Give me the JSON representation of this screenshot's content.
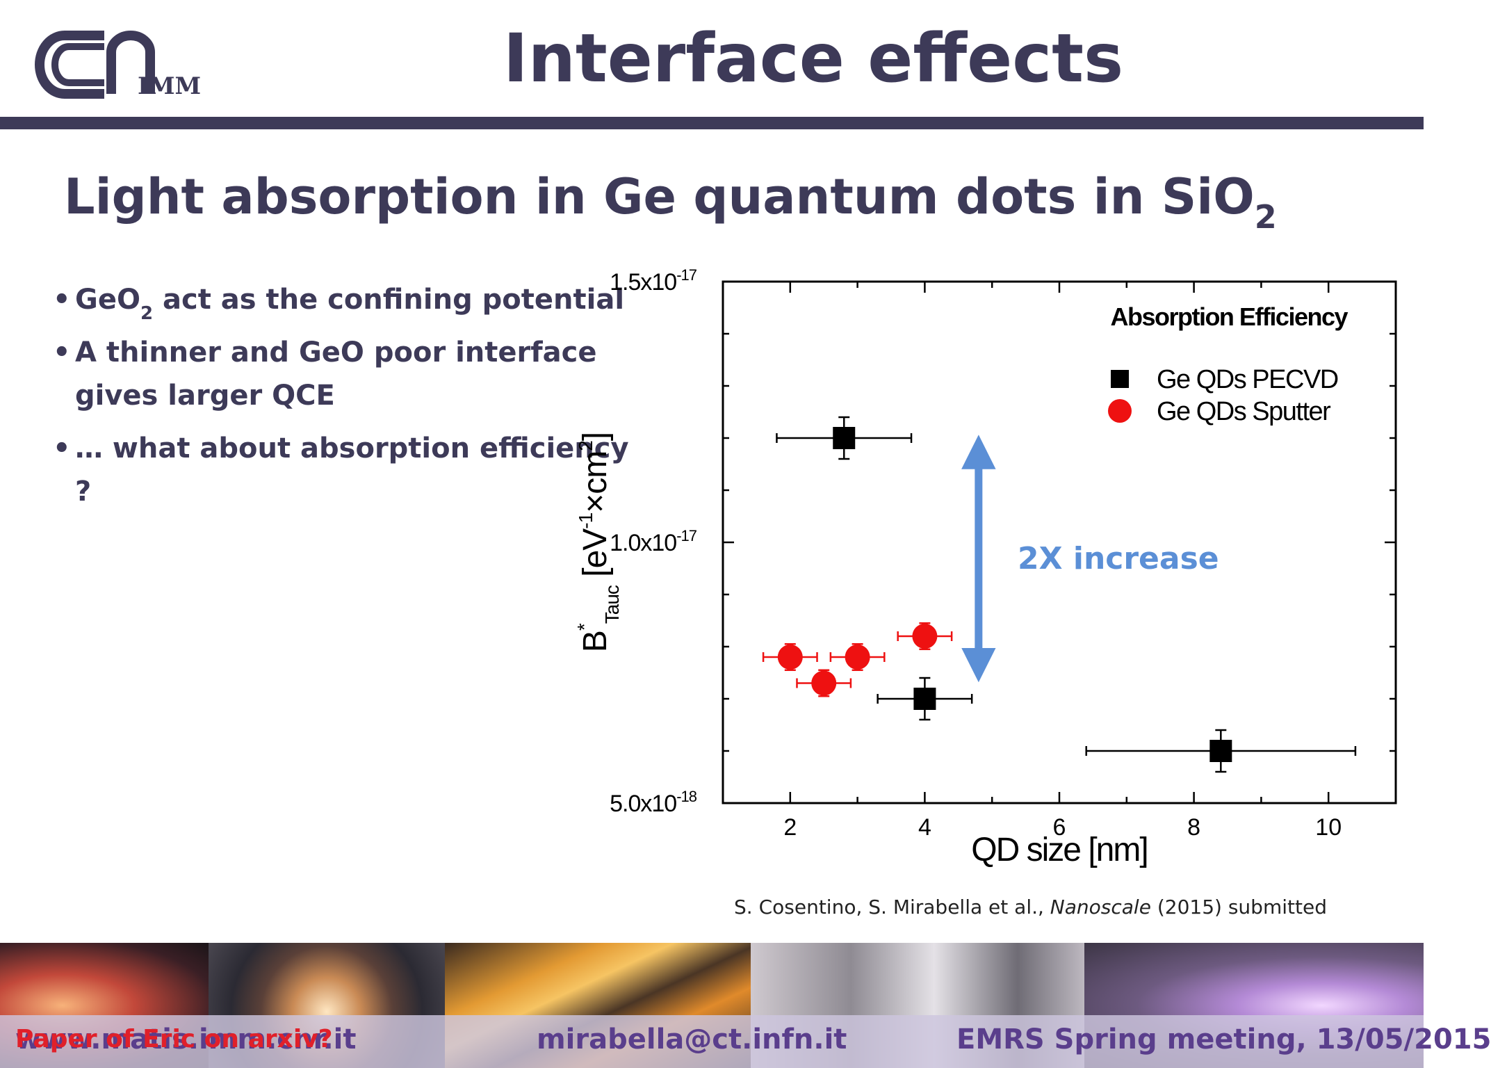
{
  "header": {
    "logo_text": "IMM",
    "title": "Interface effects"
  },
  "subtitle": {
    "main": "Light absorption in Ge quantum dots in SiO",
    "sub": "2"
  },
  "bullets": [
    {
      "pre": "GeO",
      "sub": "2",
      "post": " act as the confining potential"
    },
    {
      "pre": "A thinner and GeO poor interface gives larger QCE",
      "sub": "",
      "post": ""
    },
    {
      "pre": "… what about absorption efficiency ?",
      "sub": "",
      "post": ""
    }
  ],
  "chart_data": {
    "type": "scatter",
    "title": "Absorption Efficiency",
    "xlabel": "QD size [nm]",
    "ylabel": "B*Tauc [eV-1×cm2]",
    "xlim": [
      1,
      11
    ],
    "ylim": [
      5e-18,
      1.5e-17
    ],
    "x_ticks": [
      "2",
      "4",
      "6",
      "8",
      "10"
    ],
    "y_ticks": [
      {
        "value": 1.5e-17,
        "base": "1.5x10",
        "exp": "-17"
      },
      {
        "value": 1e-17,
        "base": "1.0x10",
        "exp": "-17"
      },
      {
        "value": 5e-18,
        "base": "5.0x10",
        "exp": "-18"
      }
    ],
    "legend_position": "top-right",
    "series": [
      {
        "name": "Ge QDs PECVD",
        "marker": "square",
        "color": "#000000",
        "points": [
          {
            "x": 2.8,
            "y": 1.2e-17,
            "xerr": 1.0,
            "yerr": 4e-19
          },
          {
            "x": 4.0,
            "y": 7e-18,
            "xerr": 0.7,
            "yerr": 4e-19
          },
          {
            "x": 8.4,
            "y": 6e-18,
            "xerr": 2.0,
            "yerr": 4e-19
          }
        ]
      },
      {
        "name": "Ge QDs Sputter",
        "marker": "circle",
        "color": "#ee1111",
        "points": [
          {
            "x": 2.0,
            "y": 7.8e-18,
            "xerr": 0.4,
            "yerr": 2.5e-19
          },
          {
            "x": 2.5,
            "y": 7.3e-18,
            "xerr": 0.4,
            "yerr": 2.5e-19
          },
          {
            "x": 3.0,
            "y": 7.8e-18,
            "xerr": 0.4,
            "yerr": 2.5e-19
          },
          {
            "x": 4.0,
            "y": 8.2e-18,
            "xerr": 0.4,
            "yerr": 2.5e-19
          }
        ]
      }
    ],
    "annotation": {
      "text": "2X increase",
      "x": 4.8,
      "y_from": 7.7e-18,
      "y_to": 1.2e-17,
      "color": "#5b8fd6"
    }
  },
  "citation": {
    "authors": "S. Cosentino, S. Mirabella et al., ",
    "journal": "Nanoscale",
    "rest": " (2015) submitted"
  },
  "footer": {
    "site": "www.matis.imm.cnr.it",
    "note": "Paper of Eric on arxiv?",
    "email": "mirabella@ct.infn.it",
    "conference": "EMRS Spring meeting, 13/05/2015"
  },
  "colors": {
    "title": "#3d3a58",
    "footer_text": "#5a3e8c",
    "note": "#e0202a",
    "arrow": "#5b8fd6"
  }
}
